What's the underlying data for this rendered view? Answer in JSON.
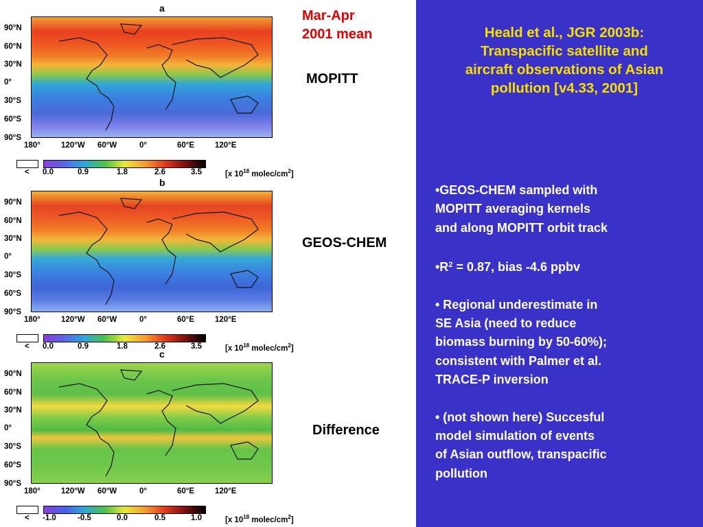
{
  "header": {
    "period_line1": "Mar-Apr",
    "period_line2": "2001 mean"
  },
  "panels": [
    {
      "letter": "a",
      "label": "MOPITT",
      "colorbar_ticks": [
        "<",
        "0.0",
        "0.9",
        "1.8",
        "2.6",
        "3.5"
      ]
    },
    {
      "letter": "b",
      "label": "GEOS-CHEM",
      "colorbar_ticks": [
        "<",
        "0.0",
        "0.9",
        "1.8",
        "2.6",
        "3.5"
      ]
    },
    {
      "letter": "c",
      "label": "Difference",
      "colorbar_ticks": [
        "<",
        "-1.0",
        "-0.5",
        "0.0",
        "0.5",
        "1.0"
      ]
    }
  ],
  "map_axes": {
    "lat_ticks": [
      "90°N",
      "60°N",
      "30°N",
      "0°",
      "30°S",
      "60°S",
      "90°S"
    ],
    "lon_ticks": [
      "180°",
      "120°W",
      "60°W",
      "0°",
      "60°E",
      "120°E"
    ]
  },
  "units": {
    "prefix": "[x 10",
    "exp": "18",
    "suffix": " molec/cm",
    "exp2": "2",
    "end": "]"
  },
  "right_panel": {
    "title_lines": [
      "Heald et al., JGR 2003b:",
      "Transpacific satellite and",
      "aircraft observations of Asian",
      "pollution [v4.33, 2001]"
    ],
    "bullets": [
      {
        "lines": [
          "•GEOS-CHEM sampled with",
          "MOPITT averaging kernels",
          "and along MOPITT orbit track"
        ]
      },
      {
        "r_prefix": "•R",
        "r_sup": "2",
        "r_suffix": " = 0.87, bias -4.6 ppbv"
      },
      {
        "lines": [
          "• Regional underestimate in",
          "SE Asia (need to reduce",
          "biomass burning by 50-60%);",
          "consistent with Palmer et al.",
          "TRACE-P inversion"
        ]
      },
      {
        "lines": [
          "• (not shown here) Succesful",
          "model simulation of events",
          "of Asian outflow, transpacific",
          "pollution"
        ]
      }
    ]
  },
  "colors": {
    "background_right": "#3a31c8",
    "title_yellow": "#f5e000",
    "header_red": "#e00000"
  }
}
